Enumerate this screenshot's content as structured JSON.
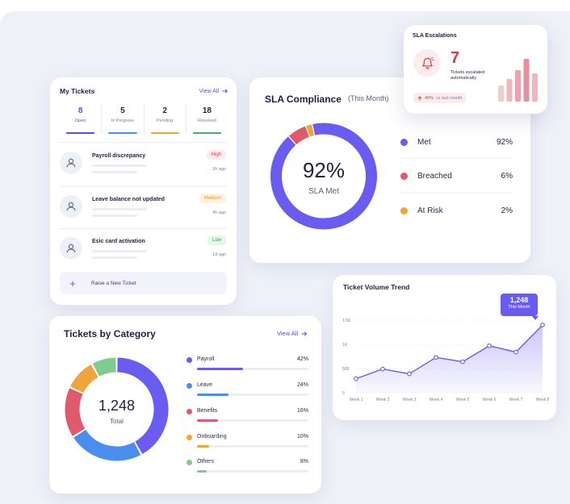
{
  "my_tickets": {
    "title": "My Tickets",
    "view_all": "View All",
    "stats": [
      {
        "value": "8",
        "label": "Open",
        "color": "#5a4fe0"
      },
      {
        "value": "5",
        "label": "In Progress",
        "color": "#4a8ff0"
      },
      {
        "value": "2",
        "label": "Pending",
        "color": "#f0a53a"
      },
      {
        "value": "18",
        "label": "Resolved",
        "color": "#39b46a"
      }
    ],
    "tickets": [
      {
        "title": "Payroll discrepancy",
        "priority": "High",
        "time": "2h ago",
        "icon": "user-icon"
      },
      {
        "title": "Leave balance not updated",
        "priority": "Medium",
        "time": "4h ago",
        "icon": "user-icon"
      },
      {
        "title": "Esic card activation",
        "priority": "Low",
        "time": "1d ago",
        "icon": "user-icon"
      }
    ],
    "raise_button": "Raise a New Ticket"
  },
  "sla_compliance": {
    "title": "SLA Compliance",
    "subtitle": "(This Month)",
    "center_value": "92%",
    "center_label": "SLA Met",
    "segments": [
      {
        "name": "Met",
        "display": "92%",
        "value": 92,
        "color": "#6a5cf0"
      },
      {
        "name": "Breached",
        "display": "6%",
        "value": 6,
        "color": "#e05a6e"
      },
      {
        "name": "At Risk",
        "display": "2%",
        "value": 2,
        "color": "#f0a53a"
      }
    ]
  },
  "sla_escalations": {
    "title": "SLA Escalations",
    "count": "7",
    "label": "Tickets escalated automatically",
    "trend": "40%",
    "trend_suffix": "vs last month",
    "icon": "bell-icon"
  },
  "ticket_volume": {
    "title": "Ticket Volume Trend",
    "tooltip_value": "1,248",
    "tooltip_label": "This Month",
    "chart_data": {
      "type": "area",
      "categories": [
        "Week 1",
        "Week 2",
        "Week 3",
        "Week 4",
        "Week 5",
        "Week 6",
        "Week 7",
        "Week 8"
      ],
      "values": [
        290,
        490,
        390,
        730,
        640,
        970,
        840,
        1400
      ],
      "ylim": [
        0,
        1500
      ],
      "y_ticks": [
        "0",
        "500",
        "1K",
        "1.5K"
      ],
      "y_tick_values": [
        0,
        500,
        1000,
        1500
      ],
      "color": "#6a5cf0"
    }
  },
  "tickets_by_category": {
    "title": "Tickets by Category",
    "view_all": "View All",
    "total": "1,248",
    "total_label": "Total",
    "categories": [
      {
        "name": "Payroll",
        "display": "42%",
        "value": 42,
        "color": "#6a5cf0"
      },
      {
        "name": "Leave",
        "display": "24%",
        "value": 24,
        "color": "#4a8ff0"
      },
      {
        "name": "Benefits",
        "display": "16%",
        "value": 16,
        "color": "#e05a6e"
      },
      {
        "name": "Onboarding",
        "display": "10%",
        "value": 10,
        "color": "#f0a53a"
      },
      {
        "name": "Others",
        "display": "8%",
        "value": 8,
        "color": "#7fcc8f"
      }
    ]
  }
}
